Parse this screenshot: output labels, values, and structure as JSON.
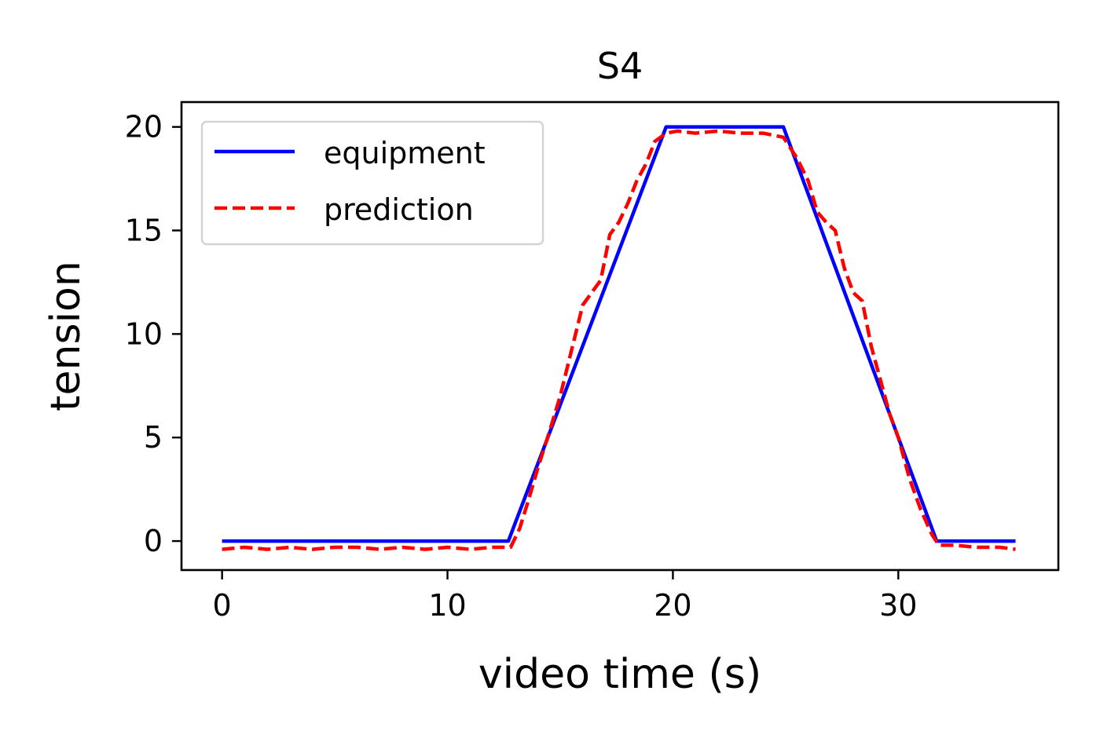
{
  "chart_data": {
    "type": "line",
    "title": "S4",
    "xlabel": "video time (s)",
    "ylabel": "tension",
    "xlim": [
      -1.8,
      37.1
    ],
    "ylim": [
      -1.4,
      21.2
    ],
    "xticks": [
      0,
      10,
      20,
      30
    ],
    "yticks": [
      0,
      5,
      10,
      15,
      20
    ],
    "grid": false,
    "legend": "upper-left",
    "series": [
      {
        "name": "equipment",
        "color": "#0000ff",
        "style": "solid",
        "x": [
          0,
          12.7,
          19.7,
          24.9,
          31.7,
          35.2
        ],
        "y": [
          0,
          0,
          20.0,
          20.0,
          0,
          0
        ]
      },
      {
        "name": "prediction",
        "color": "#ff0000",
        "style": "dashed",
        "x": [
          0,
          1,
          2,
          3,
          4,
          5,
          6,
          7,
          8,
          9,
          10,
          11,
          12,
          12.8,
          13.2,
          13.6,
          14.0,
          14.5,
          15.0,
          15.5,
          16.0,
          16.4,
          16.8,
          17.2,
          17.6,
          18.0,
          18.4,
          18.8,
          19.2,
          19.7,
          20.2,
          21.0,
          22.0,
          23.0,
          24.0,
          24.9,
          25.5,
          26.0,
          26.4,
          26.8,
          27.2,
          27.6,
          28.0,
          28.4,
          28.8,
          29.2,
          29.6,
          30.0,
          30.5,
          31.0,
          31.5,
          31.8,
          32.5,
          33.5,
          34.5,
          35.2
        ],
        "y": [
          -0.4,
          -0.3,
          -0.4,
          -0.3,
          -0.4,
          -0.3,
          -0.3,
          -0.4,
          -0.3,
          -0.4,
          -0.3,
          -0.4,
          -0.3,
          -0.3,
          0.6,
          2.0,
          3.5,
          5.2,
          7.0,
          9.2,
          11.4,
          12.0,
          12.6,
          14.8,
          15.4,
          16.3,
          17.4,
          18.2,
          19.3,
          19.7,
          19.8,
          19.7,
          19.8,
          19.7,
          19.7,
          19.5,
          18.5,
          17.4,
          15.9,
          15.4,
          15.0,
          13.2,
          12.0,
          11.6,
          9.4,
          7.8,
          6.2,
          5.0,
          3.0,
          1.5,
          0.3,
          -0.2,
          -0.2,
          -0.3,
          -0.3,
          -0.4
        ]
      }
    ]
  }
}
